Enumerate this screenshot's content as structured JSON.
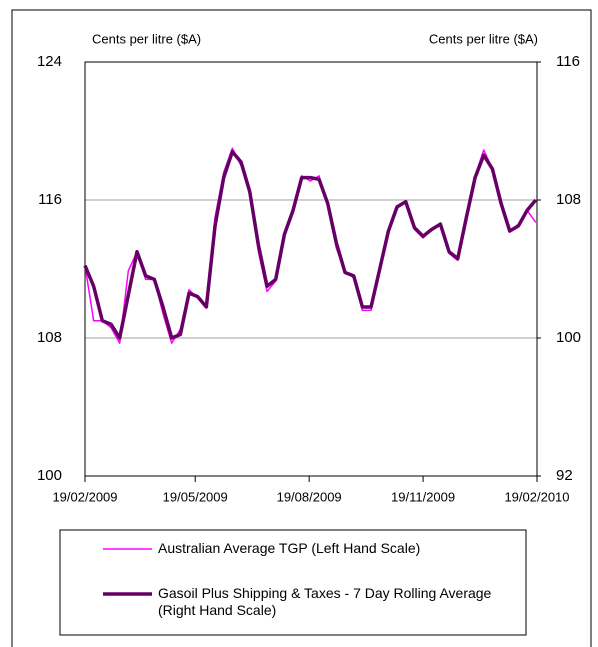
{
  "chart_data": {
    "type": "line",
    "ylabel": "Cents per litre ($A)",
    "y2label": "Cents per litre ($A)",
    "x": [
      "19/02/2009",
      "26/02/2009",
      "05/03/2009",
      "12/03/2009",
      "19/03/2009",
      "26/03/2009",
      "02/04/2009",
      "09/04/2009",
      "16/04/2009",
      "23/04/2009",
      "30/04/2009",
      "07/05/2009",
      "14/05/2009",
      "21/05/2009",
      "28/05/2009",
      "04/06/2009",
      "11/06/2009",
      "18/06/2009",
      "25/06/2009",
      "02/07/2009",
      "09/07/2009",
      "16/07/2009",
      "23/07/2009",
      "30/07/2009",
      "06/08/2009",
      "13/08/2009",
      "20/08/2009",
      "27/08/2009",
      "03/09/2009",
      "10/09/2009",
      "17/09/2009",
      "24/09/2009",
      "01/10/2009",
      "08/10/2009",
      "15/10/2009",
      "22/10/2009",
      "29/10/2009",
      "05/11/2009",
      "12/11/2009",
      "19/11/2009",
      "26/11/2009",
      "03/12/2009",
      "10/12/2009",
      "17/12/2009",
      "24/12/2009",
      "31/12/2009",
      "07/01/2010",
      "14/01/2010",
      "21/01/2010",
      "28/01/2010",
      "04/02/2010",
      "11/02/2010",
      "18/02/2010"
    ],
    "series": [
      {
        "name": "Australian Average TGP (Left Hand Scale)",
        "color": "#ff00ff",
        "width": 1.5,
        "values": [
          112.2,
          109.0,
          109.0,
          108.6,
          107.7,
          111.9,
          113.0,
          111.4,
          111.4,
          109.4,
          107.7,
          108.5,
          110.8,
          110.3,
          109.8,
          115.0,
          117.6,
          119.0,
          118.0,
          116.3,
          113.0,
          110.7,
          111.3,
          114.0,
          115.4,
          117.4,
          117.1,
          117.4,
          115.6,
          113.2,
          111.8,
          111.5,
          109.6,
          109.6,
          112.0,
          114.2,
          115.6,
          115.9,
          114.3,
          113.8,
          114.3,
          114.6,
          112.9,
          112.5,
          115.0,
          117.4,
          118.9,
          117.8,
          115.7,
          114.2,
          114.6,
          115.4,
          114.7
        ]
      },
      {
        "name": "Gasoil Plus Shipping & Taxes - 7 Day Rolling Average (Right Hand Scale)",
        "color": "#660066",
        "width": 3.5,
        "axis": "y2",
        "values": [
          104.2,
          103.0,
          101.0,
          100.8,
          100.0,
          102.5,
          105.0,
          103.6,
          103.4,
          101.8,
          100.0,
          100.2,
          102.6,
          102.4,
          101.8,
          106.5,
          109.3,
          110.8,
          110.2,
          108.5,
          105.4,
          103.0,
          103.4,
          106.0,
          107.4,
          109.3,
          109.3,
          109.2,
          107.8,
          105.5,
          103.8,
          103.6,
          101.8,
          101.8,
          104.0,
          106.2,
          107.6,
          107.9,
          106.4,
          105.9,
          106.3,
          106.6,
          105.0,
          104.6,
          107.0,
          109.3,
          110.6,
          109.8,
          107.8,
          106.2,
          106.5,
          107.4,
          108.0
        ]
      }
    ],
    "xlim": [
      "19/02/2009",
      "19/02/2010"
    ],
    "xticks": [
      "19/02/2009",
      "19/05/2009",
      "19/08/2009",
      "19/11/2009",
      "19/02/2010"
    ],
    "ylim": [
      100,
      124
    ],
    "yticks": [
      100,
      108,
      116,
      124
    ],
    "y2lim": [
      92,
      116
    ],
    "y2ticks": [
      92,
      100,
      108,
      116
    ],
    "grid": true
  }
}
